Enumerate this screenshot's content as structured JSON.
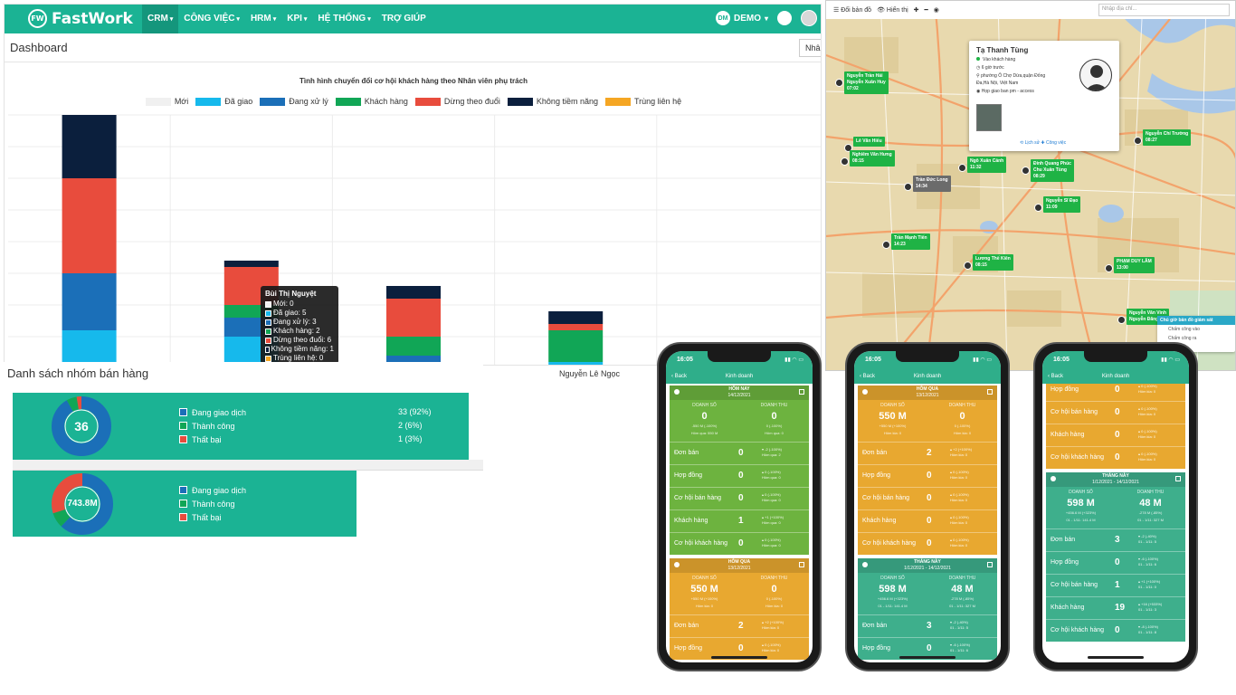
{
  "app": {
    "logo_badge": "FW",
    "logo_text": "FastWork",
    "menu": [
      "CRM",
      "CÔNG VIỆC",
      "HRM",
      "KPI",
      "HỆ THỐNG",
      "TRỢ GIÚP"
    ],
    "menu_carets": "▾",
    "user_badge": "DM",
    "user_label": "DEMO",
    "user_caret": "▾",
    "page_title": "Dashboard",
    "page_btn": "Nhâ"
  },
  "chart_data": {
    "type": "bar",
    "stacked": true,
    "title": "Tình hình chuyển đổi cơ hội khách hàng theo Nhân viên phụ trách",
    "legend_position": "top",
    "grid": true,
    "categories": [
      "",
      "Bùi Thị Nguyệt",
      "",
      "Nguyễn Lê Ngọc",
      ""
    ],
    "series": [
      {
        "name": "Mới",
        "color": "#f0f0f0",
        "values": [
          0,
          0,
          0,
          0,
          0
        ]
      },
      {
        "name": "Đã giao",
        "color": "#16b9ec",
        "values": [
          6,
          5,
          1,
          1,
          0
        ]
      },
      {
        "name": "Đang xử lý",
        "color": "#1b6fb8",
        "values": [
          9,
          3,
          1,
          0,
          0
        ]
      },
      {
        "name": "Khách hàng",
        "color": "#11a656",
        "values": [
          0,
          2,
          3,
          5,
          0
        ]
      },
      {
        "name": "Dừng theo đuổi",
        "color": "#e84c3d",
        "values": [
          15,
          6,
          6,
          1,
          0
        ]
      },
      {
        "name": "Không tiềm năng",
        "color": "#0b1f3d",
        "values": [
          10,
          1,
          2,
          2,
          3
        ]
      },
      {
        "name": "Trùng liên hệ",
        "color": "#f5a623",
        "values": [
          0,
          0,
          0,
          0,
          0
        ]
      }
    ]
  },
  "tooltip": {
    "name": "Bùi Thị Nguyệt",
    "rows": [
      "Mới: 0",
      "Đã giao: 5",
      "Đang xử lý: 3",
      "Khách hàng: 2",
      "Dừng theo đuổi: 6",
      "Không tiềm năng: 1",
      "Trùng liên hệ: 0"
    ]
  },
  "groups": {
    "title": "Danh sách nhóm bán hàng",
    "count_panel": {
      "center": "36",
      "slices": [
        {
          "label": "Đang giao dịch",
          "value": 33,
          "pct": "(92%)",
          "color": "#1b6fb8"
        },
        {
          "label": "Thành công",
          "value": 2,
          "pct": "(6%)",
          "color": "#11a656"
        },
        {
          "label": "Thất bại",
          "value": 1,
          "pct": "(3%)",
          "color": "#e84c3d"
        }
      ]
    },
    "value_panel": {
      "center": "743.8M",
      "slices": [
        {
          "label": "Đang giao dịch",
          "share": 0.62,
          "color": "#1b6fb8"
        },
        {
          "label": "Thành công",
          "share": 0.08,
          "color": "#11a656"
        },
        {
          "label": "Thất bại",
          "share": 0.3,
          "color": "#e84c3d"
        }
      ]
    }
  },
  "map": {
    "toolbar": [
      "☰ Đổi bản đồ",
      "👁 Hiển thị",
      "✚",
      "━",
      "◉"
    ],
    "search_placeholder": "Nhập địa chỉ...",
    "info": {
      "name": "Tạ Thanh Tùng",
      "status": "Vào khách hàng",
      "time": "6 giờ trước",
      "address_1": "phường Ô Chợ Dừa,quận Đống",
      "address_2": "Đa,Hà Nội, Việt Nam",
      "note": "Họp giao ban pm - access",
      "links": "⟲ Lịch sử   ✚ Công việc"
    },
    "markers": [
      {
        "name": "Nguyễn Trần Hải",
        "sub": "Nguyễn Xuân Huy",
        "time": "07:02"
      },
      {
        "name": "Lê Văn Hiếu",
        "sub": "",
        "time": ""
      },
      {
        "name": "Nghiêm Văn Hưng",
        "sub": "",
        "time": "08:15"
      },
      {
        "name": "Trần Đức Long",
        "sub": "",
        "time": "14:34"
      },
      {
        "name": "Ngô Xuân Cảnh",
        "sub": "",
        "time": "11:32"
      },
      {
        "name": "Đinh Quang Phúc",
        "sub": "Chu Xuân Tùng",
        "time": "08:29"
      },
      {
        "name": "Nguyễn Chí Trường",
        "sub": "",
        "time": "08:27"
      },
      {
        "name": "Nguyễn Sĩ Đạo",
        "sub": "",
        "time": "11:09"
      },
      {
        "name": "Trần Mạnh Tiến",
        "sub": "",
        "time": "14:23"
      },
      {
        "name": "Lương Thế Kiên",
        "sub": "",
        "time": "08:15"
      },
      {
        "name": "PHẠM DUY LÂM",
        "sub": "",
        "time": "13:00"
      },
      {
        "name": "Nguyễn Văn Vinh",
        "sub": "Nguyễn Đăng",
        "time": ""
      }
    ],
    "popup": {
      "head": "Chủ giờ bản đồ giám sát",
      "rows": [
        "Chấm công vào",
        "Chấm công ra"
      ]
    }
  },
  "phones": [
    {
      "time": "16:05",
      "back": "‹ Back",
      "title": "Kinh doanh",
      "sections": [
        {
          "color": "#6db33f",
          "head": "HÔM NAY",
          "date": "14/12/2021",
          "ds_label": "DOANH SỐ",
          "dt_label": "DOANH THU",
          "ds": "0",
          "dt": "0",
          "ds_note": "-550 M (-100%)|Hôm qua: 550 M",
          "dt_note": "0 (-100%)|Hôm qua: 0",
          "rows": [
            {
              "l": "Đơn bán",
              "v": "0",
              "n": "▾ -2 (-100%)|Hôm qua: 2"
            },
            {
              "l": "Hợp đồng",
              "v": "0",
              "n": "▴ 0 (-100%)|Hôm qua: 0"
            },
            {
              "l": "Cơ hội bán hàng",
              "v": "0",
              "n": "▴ 0 (-100%)|Hôm qua: 0"
            },
            {
              "l": "Khách hàng",
              "v": "1",
              "n": "▴ +1 (+100%)|Hôm qua: 0"
            },
            {
              "l": "Cơ hội khách hàng",
              "v": "0",
              "n": "▴ 0 (-100%)|Hôm qua: 0"
            }
          ]
        },
        {
          "color": "#e8a830",
          "head": "HÔM QUA",
          "date": "13/12/2021",
          "ds_label": "DOANH SỐ",
          "dt_label": "DOANH THU",
          "ds": "550 M",
          "dt": "0",
          "ds_note": "+550 M (+100%)|Hôm kia: 0",
          "dt_note": "0 (-100%)|Hôm kia: 0",
          "rows": [
            {
              "l": "Đơn bán",
              "v": "2",
              "n": "▴ +2 (+100%)|Hôm kia: 0"
            },
            {
              "l": "Hợp đồng",
              "v": "0",
              "n": "▴ 0 (-100%)|Hôm kia: 0"
            }
          ]
        }
      ]
    },
    {
      "time": "16:05",
      "back": "‹ Back",
      "title": "Kinh doanh",
      "sections": [
        {
          "color": "#e8a830",
          "head": "HÔM QUA",
          "date": "13/12/2021",
          "ds_label": "DOANH SỐ",
          "dt_label": "DOANH THU",
          "ds": "550 M",
          "dt": "0",
          "ds_note": "+550 M (+100%)|Hôm kia: 0",
          "dt_note": "0 (-100%)|Hôm kia: 0",
          "rows": [
            {
              "l": "Đơn bán",
              "v": "2",
              "n": "▴ +2 (+100%)|Hôm kia: 0"
            },
            {
              "l": "Hợp đồng",
              "v": "0",
              "n": "▴ 0 (-100%)|Hôm kia: 0"
            },
            {
              "l": "Cơ hội bán hàng",
              "v": "0",
              "n": "▴ 0 (-100%)|Hôm kia: 0"
            },
            {
              "l": "Khách hàng",
              "v": "0",
              "n": "▴ 0 (-100%)|Hôm kia: 0"
            },
            {
              "l": "Cơ hội khách hàng",
              "v": "0",
              "n": "▴ 0 (-100%)|Hôm kia: 0"
            }
          ]
        },
        {
          "color": "#3eaf8c",
          "head": "THÁNG NÀY",
          "date": "1/12/2021 - 14/12/2021",
          "ds_label": "DOANH SỐ",
          "dt_label": "DOANH THU",
          "ds": "598 M",
          "dt": "48 M",
          "ds_note": "+456.6 M (+323%)|01 - 1/11: 141.4 M",
          "dt_note": "-278 M (-85%)|01 - 1/11: 327 M",
          "rows": [
            {
              "l": "Đơn bán",
              "v": "3",
              "n": "▾ -2 (-40%)|01 - 1/11: 5"
            },
            {
              "l": "Hợp đồng",
              "v": "0",
              "n": "▾ -6 (-100%)|01 - 1/11: 6"
            }
          ]
        }
      ]
    },
    {
      "time": "16:05",
      "back": "‹ Back",
      "title": "Kinh doanh",
      "sections": [
        {
          "color": "#e8a830",
          "head": "",
          "date": "",
          "ds_label": "",
          "dt_label": "",
          "ds": "",
          "dt": "",
          "ds_note": "",
          "dt_note": "",
          "rows": [
            {
              "l": "Hợp đồng",
              "v": "0",
              "n": "▴ 0 (-100%)|Hôm kia: 0"
            },
            {
              "l": "Cơ hội bán hàng",
              "v": "0",
              "n": "▴ 0 (-100%)|Hôm kia: 0"
            },
            {
              "l": "Khách hàng",
              "v": "0",
              "n": "▴ 0 (-100%)|Hôm kia: 0"
            },
            {
              "l": "Cơ hội khách hàng",
              "v": "0",
              "n": "▴ 0 (-100%)|Hôm kia: 0"
            }
          ]
        },
        {
          "color": "#3eaf8c",
          "head": "THÁNG NÀY",
          "date": "1/12/2021 - 14/12/2021",
          "ds_label": "DOANH SỐ",
          "dt_label": "DOANH THU",
          "ds": "598 M",
          "dt": "48 M",
          "ds_note": "+456.6 M (+323%)|01 - 1/11: 141.4 M",
          "dt_note": "-278 M (-85%)|01 - 1/11: 327 M",
          "rows": [
            {
              "l": "Đơn bán",
              "v": "3",
              "n": "▾ -2 (-40%)|01 - 1/11: 5"
            },
            {
              "l": "Hợp đồng",
              "v": "0",
              "n": "▾ -6 (-100%)|01 - 1/11: 6"
            },
            {
              "l": "Cơ hội bán hàng",
              "v": "1",
              "n": "▴ +1 (+100%)|01 - 1/11: 0"
            },
            {
              "l": "Khách hàng",
              "v": "19",
              "n": "▴ +16 (+533%)|01 - 1/11: 3"
            },
            {
              "l": "Cơ hội khách hàng",
              "v": "0",
              "n": "▾ -8 (-100%)|01 - 1/11: 8"
            }
          ]
        }
      ]
    }
  ]
}
